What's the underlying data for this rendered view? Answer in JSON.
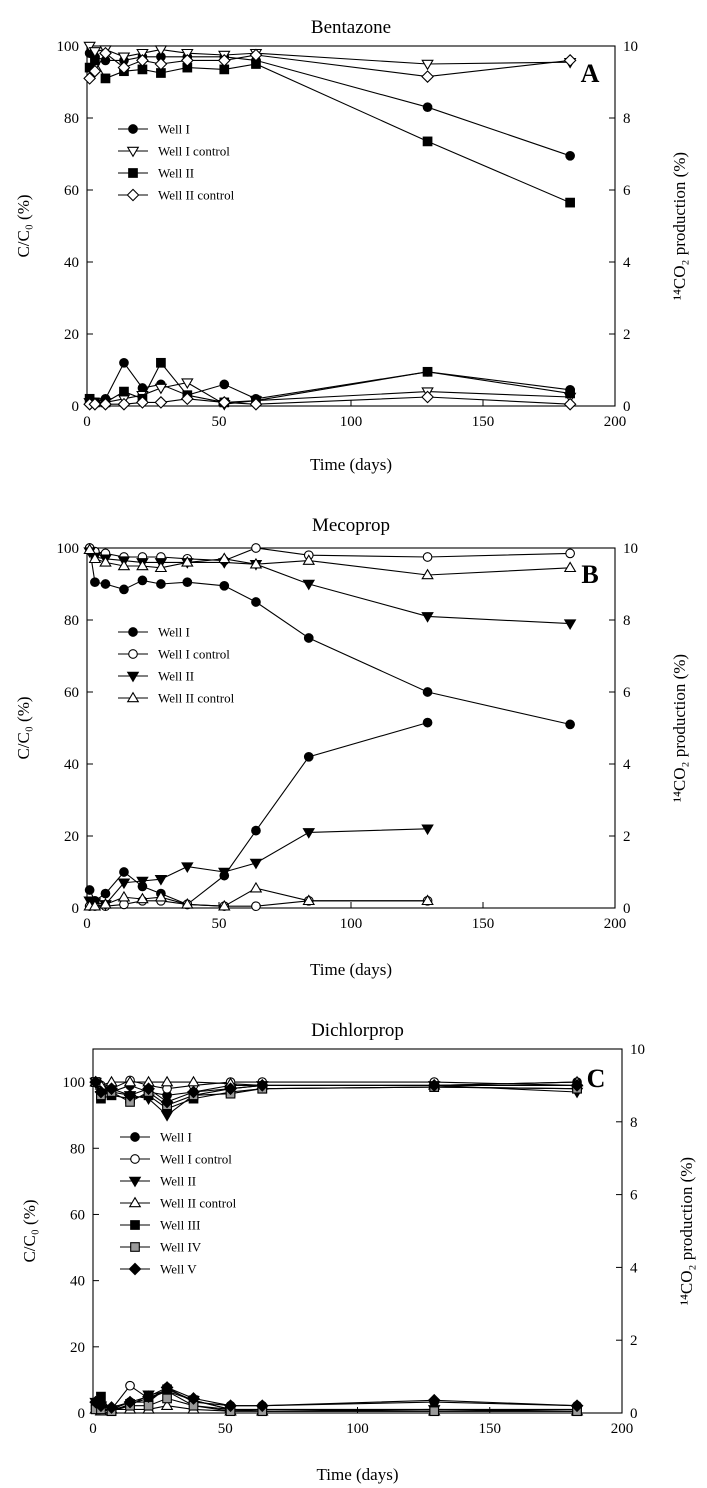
{
  "chart_data": [
    {
      "type": "line",
      "title": "Bentazone",
      "panel_label": "A",
      "xlabel": "Time (days)",
      "ylabel": "C/C₀ (%)",
      "y2label": "¹⁴CO₂ production (%)",
      "xlim": [
        0,
        200
      ],
      "ylim": [
        0,
        100
      ],
      "y2lim": [
        0,
        10
      ],
      "xticks": [
        0,
        50,
        100,
        150,
        200
      ],
      "yticks": [
        0,
        20,
        40,
        60,
        80,
        100
      ],
      "y2ticks": [
        0,
        2,
        4,
        6,
        8,
        10
      ],
      "grid": false,
      "legend_position": "left",
      "series": [
        {
          "name": "Well I",
          "marker": "circle-filled",
          "axis": "left",
          "x": [
            1,
            3,
            7,
            14,
            21,
            28,
            38,
            52,
            64,
            129,
            183
          ],
          "y": [
            98,
            97,
            96,
            96,
            97,
            97,
            97,
            97,
            96,
            83,
            69.5
          ]
        },
        {
          "name": "Well I control",
          "marker": "triangle-down-open",
          "axis": "left",
          "x": [
            1,
            3,
            7,
            14,
            21,
            28,
            38,
            52,
            64,
            129,
            183
          ],
          "y": [
            100,
            98.5,
            99,
            97,
            98,
            99,
            98,
            97.5,
            98,
            95,
            95.5
          ]
        },
        {
          "name": "Well II",
          "marker": "square-filled",
          "axis": "left",
          "x": [
            1,
            3,
            7,
            14,
            21,
            28,
            38,
            52,
            64,
            129,
            183
          ],
          "y": [
            94,
            96,
            91,
            93,
            93.5,
            92.5,
            94,
            93.5,
            95,
            73.5,
            56.5
          ]
        },
        {
          "name": "Well II control",
          "marker": "diamond-open",
          "axis": "left",
          "x": [
            1,
            3,
            7,
            14,
            21,
            28,
            38,
            52,
            64,
            129,
            183
          ],
          "y": [
            91,
            93,
            98,
            94,
            96,
            95,
            96,
            96,
            97.5,
            91.5,
            96
          ]
        },
        {
          "name": "Well I",
          "marker": "circle-filled",
          "axis": "right",
          "x": [
            1,
            3,
            7,
            14,
            21,
            28,
            38,
            52,
            64,
            129,
            183
          ],
          "y": [
            0.2,
            0.1,
            0.2,
            1.2,
            0.5,
            0.6,
            0.3,
            0.6,
            0.2,
            0.95,
            0.45
          ]
        },
        {
          "name": "Well I control",
          "marker": "triangle-down-open",
          "axis": "right",
          "x": [
            1,
            3,
            7,
            14,
            21,
            28,
            38,
            52,
            64,
            129,
            183
          ],
          "y": [
            0.1,
            0.05,
            0.1,
            0.2,
            0.3,
            0.5,
            0.65,
            0.05,
            0.15,
            0.4,
            0.25
          ]
        },
        {
          "name": "Well II",
          "marker": "square-filled",
          "axis": "right",
          "x": [
            1,
            3,
            7,
            14,
            21,
            28,
            38,
            52,
            64,
            129,
            183
          ],
          "y": [
            0.2,
            0.1,
            0.1,
            0.4,
            0.2,
            1.2,
            0.3,
            0.1,
            0.15,
            0.95,
            0.35
          ]
        },
        {
          "name": "Well II control",
          "marker": "diamond-open",
          "axis": "right",
          "x": [
            1,
            3,
            7,
            14,
            21,
            28,
            38,
            52,
            64,
            129,
            183
          ],
          "y": [
            0.05,
            0.05,
            0.05,
            0.05,
            0.1,
            0.1,
            0.2,
            0.1,
            0.05,
            0.25,
            0.05
          ]
        }
      ]
    },
    {
      "type": "line",
      "title": "Mecoprop",
      "panel_label": "B",
      "xlabel": "Time (days)",
      "ylabel": "C/C₀ (%)",
      "y2label": "¹⁴CO₂ production (%)",
      "xlim": [
        0,
        200
      ],
      "ylim": [
        0,
        100
      ],
      "y2lim": [
        0,
        10
      ],
      "xticks": [
        0,
        50,
        100,
        150,
        200
      ],
      "yticks": [
        0,
        20,
        40,
        60,
        80,
        100
      ],
      "y2ticks": [
        0,
        2,
        4,
        6,
        8,
        10
      ],
      "grid": false,
      "legend_position": "left",
      "series": [
        {
          "name": "Well I",
          "marker": "circle-filled",
          "axis": "left",
          "x": [
            1,
            3,
            7,
            14,
            21,
            28,
            38,
            52,
            64,
            84,
            129,
            183
          ],
          "y": [
            100,
            90.5,
            90,
            88.5,
            91,
            90,
            90.5,
            89.5,
            85,
            75,
            60,
            51
          ]
        },
        {
          "name": "Well I control",
          "marker": "circle-open",
          "axis": "left",
          "x": [
            1,
            3,
            7,
            14,
            21,
            28,
            38,
            52,
            64,
            84,
            129,
            183
          ],
          "y": [
            100,
            99,
            98.5,
            97.5,
            97.5,
            97.5,
            97,
            96.5,
            100,
            98,
            97.5,
            98.5
          ]
        },
        {
          "name": "Well II",
          "marker": "triangle-down-filled",
          "axis": "left",
          "x": [
            1,
            3,
            7,
            14,
            21,
            28,
            38,
            52,
            64,
            84,
            129,
            183
          ],
          "y": [
            99,
            97.5,
            97,
            96.5,
            96,
            96,
            96,
            96,
            95.5,
            90,
            81,
            79
          ]
        },
        {
          "name": "Well II control",
          "marker": "triangle-up-open",
          "axis": "left",
          "x": [
            1,
            3,
            7,
            14,
            21,
            28,
            38,
            52,
            64,
            84,
            129,
            183
          ],
          "y": [
            99.5,
            97,
            96,
            95,
            95,
            94.5,
            96,
            97,
            95.5,
            96.5,
            92.5,
            94.5
          ]
        },
        {
          "name": "Well I",
          "marker": "circle-filled",
          "axis": "right",
          "x": [
            1,
            3,
            7,
            14,
            21,
            28,
            38,
            52,
            64,
            84,
            129
          ],
          "y": [
            0.5,
            0.2,
            0.4,
            1.0,
            0.6,
            0.4,
            0.1,
            0.9,
            2.15,
            4.2,
            5.15
          ]
        },
        {
          "name": "Well I control",
          "marker": "circle-open",
          "axis": "right",
          "x": [
            1,
            3,
            7,
            14,
            21,
            28,
            38,
            52,
            64,
            84,
            129
          ],
          "y": [
            0.05,
            0.05,
            0.05,
            0.1,
            0.2,
            0.2,
            0.1,
            0.05,
            0.05,
            0.2,
            0.2
          ]
        },
        {
          "name": "Well II",
          "marker": "triangle-down-filled",
          "axis": "right",
          "x": [
            1,
            3,
            7,
            14,
            21,
            28,
            38,
            52,
            64,
            84,
            129
          ],
          "y": [
            0.2,
            0.15,
            0.1,
            0.7,
            0.75,
            0.8,
            1.15,
            1.0,
            1.25,
            2.1,
            2.2
          ]
        },
        {
          "name": "Well II control",
          "marker": "triangle-up-open",
          "axis": "right",
          "x": [
            1,
            3,
            7,
            14,
            21,
            28,
            38,
            52,
            64,
            84,
            129
          ],
          "y": [
            0.05,
            0.05,
            0.1,
            0.3,
            0.25,
            0.3,
            0.1,
            0.05,
            0.55,
            0.2,
            0.2
          ]
        }
      ]
    },
    {
      "type": "line",
      "title": "Dichlorprop",
      "panel_label": "C",
      "xlabel": "Time (days)",
      "ylabel": "C/C₀ (%)",
      "y2label": "¹⁴CO₂ production (%)",
      "xlim": [
        0,
        200
      ],
      "ylim": [
        0,
        110
      ],
      "y2lim": [
        0,
        10
      ],
      "xticks": [
        0,
        50,
        100,
        150,
        200
      ],
      "yticks": [
        0,
        20,
        40,
        60,
        80,
        100
      ],
      "y2ticks": [
        0,
        2,
        4,
        6,
        8,
        10
      ],
      "grid": false,
      "legend_position": "left",
      "series": [
        {
          "name": "Well I",
          "marker": "circle-filled",
          "axis": "left",
          "x": [
            1,
            3,
            7,
            14,
            21,
            28,
            38,
            52,
            64,
            129,
            183
          ],
          "y": [
            100,
            98,
            97,
            99,
            97,
            96,
            97,
            99,
            99,
            99,
            100
          ]
        },
        {
          "name": "Well I control",
          "marker": "circle-open",
          "axis": "left",
          "x": [
            1,
            3,
            7,
            14,
            21,
            28,
            38,
            52,
            64,
            129,
            183
          ],
          "y": [
            100,
            99,
            98,
            100.5,
            99,
            98,
            99,
            100,
            100,
            100,
            99
          ]
        },
        {
          "name": "Well II",
          "marker": "triangle-down-filled",
          "axis": "left",
          "x": [
            1,
            3,
            7,
            14,
            21,
            28,
            38,
            52,
            64,
            129,
            183
          ],
          "y": [
            100,
            96,
            97,
            96,
            95,
            90,
            96,
            98,
            99,
            99,
            97
          ]
        },
        {
          "name": "Well II control",
          "marker": "triangle-up-open",
          "axis": "left",
          "x": [
            1,
            3,
            7,
            14,
            21,
            28,
            38,
            52,
            64,
            129,
            183
          ],
          "y": [
            100,
            99,
            100,
            100,
            100,
            100,
            100,
            99.5,
            99,
            99,
            100
          ]
        },
        {
          "name": "Well III",
          "marker": "square-filled",
          "axis": "left",
          "x": [
            1,
            3,
            7,
            14,
            21,
            28,
            38,
            52,
            64,
            129,
            183
          ],
          "y": [
            100,
            95,
            96,
            95,
            96,
            92,
            95,
            97,
            98,
            98.5,
            98
          ]
        },
        {
          "name": "Well IV",
          "marker": "square-grey",
          "axis": "left",
          "x": [
            1,
            3,
            7,
            14,
            21,
            28,
            38,
            52,
            64,
            129,
            183
          ],
          "y": [
            100,
            96,
            97,
            94,
            97,
            93,
            96,
            96.5,
            98,
            98.5,
            98
          ]
        },
        {
          "name": "Well V",
          "marker": "diamond-filled",
          "axis": "left",
          "x": [
            1,
            3,
            7,
            14,
            21,
            28,
            38,
            52,
            64,
            129,
            183
          ],
          "y": [
            100,
            97,
            98,
            96,
            98,
            94,
            97,
            98,
            99,
            99,
            99
          ]
        },
        {
          "name": "Well I",
          "marker": "circle-filled",
          "axis": "right",
          "x": [
            1,
            3,
            7,
            14,
            21,
            28,
            38,
            52,
            64,
            129,
            183
          ],
          "y": [
            0.2,
            0.3,
            0.1,
            0.3,
            0.3,
            0.7,
            0.3,
            0.2,
            0.2,
            0.3,
            0.2
          ]
        },
        {
          "name": "Well I control",
          "marker": "circle-open",
          "axis": "right",
          "x": [
            1,
            3,
            7,
            14,
            21,
            28,
            38,
            52,
            64,
            129,
            183
          ],
          "y": [
            0.1,
            0.1,
            0.1,
            0.75,
            0.4,
            0.6,
            0.2,
            0.1,
            0.05,
            0.1,
            0.05
          ]
        },
        {
          "name": "Well II",
          "marker": "triangle-down-filled",
          "axis": "right",
          "x": [
            1,
            3,
            7,
            14,
            21,
            28,
            38,
            52,
            64,
            129,
            183
          ],
          "y": [
            0.3,
            0.2,
            0.1,
            0.2,
            0.5,
            0.6,
            0.35,
            0.1,
            0.1,
            0.1,
            0.1
          ]
        },
        {
          "name": "Well II control",
          "marker": "triangle-up-open",
          "axis": "right",
          "x": [
            1,
            3,
            7,
            14,
            21,
            28,
            38,
            52,
            64,
            129,
            183
          ],
          "y": [
            0.1,
            0.05,
            0.1,
            0.1,
            0.1,
            0.2,
            0.1,
            0.05,
            0.05,
            0.05,
            0.05
          ]
        },
        {
          "name": "Well III",
          "marker": "square-filled",
          "axis": "right",
          "x": [
            1,
            3,
            7,
            14,
            21,
            28,
            38,
            52,
            64,
            129,
            183
          ],
          "y": [
            0.2,
            0.45,
            0.05,
            0.25,
            0.4,
            0.65,
            0.35,
            0.1,
            0.05,
            0.05,
            0.05
          ]
        },
        {
          "name": "Well IV",
          "marker": "square-grey",
          "axis": "right",
          "x": [
            1,
            3,
            7,
            14,
            21,
            28,
            38,
            52,
            64,
            129,
            183
          ],
          "y": [
            0.1,
            0.1,
            0.05,
            0.2,
            0.2,
            0.4,
            0.2,
            0.05,
            0.05,
            0.05,
            0.05
          ]
        },
        {
          "name": "Well V",
          "marker": "diamond-filled",
          "axis": "right",
          "x": [
            1,
            3,
            7,
            14,
            21,
            28,
            38,
            52,
            64,
            129,
            183
          ],
          "y": [
            0.3,
            0.2,
            0.15,
            0.3,
            0.45,
            0.7,
            0.4,
            0.2,
            0.2,
            0.35,
            0.2
          ]
        }
      ]
    }
  ]
}
